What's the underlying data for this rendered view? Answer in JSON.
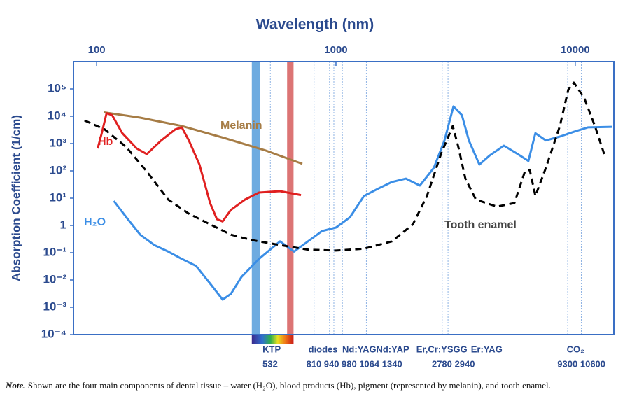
{
  "chart_data": {
    "type": "line",
    "title": "Wavelength (nm)",
    "y_label": "Absorption Coefficient (1/cm)",
    "x_scale": "log",
    "y_scale": "log",
    "xlim": [
      80,
      14500
    ],
    "xticks": [
      100,
      1000,
      10000
    ],
    "ylim": [
      0.0001,
      1000000
    ],
    "yticks": [
      {
        "value": 0.0001,
        "label": "10⁻⁴"
      },
      {
        "value": 0.001,
        "label": "10⁻³"
      },
      {
        "value": 0.01,
        "label": "10⁻²"
      },
      {
        "value": 0.1,
        "label": "10⁻¹"
      },
      1,
      {
        "value": 10,
        "label": "10¹"
      },
      {
        "value": 100,
        "label": "10²"
      },
      {
        "value": 1000,
        "label": "10³"
      },
      {
        "value": 10000,
        "label": "10⁴"
      },
      {
        "value": 100000,
        "label": "10⁵"
      }
    ],
    "series": [
      {
        "name": "Melanin",
        "color": "#a67c45",
        "x": [
          107,
          152,
          227,
          341,
          510,
          724
        ],
        "values": [
          14000,
          8900,
          4400,
          1600,
          550,
          180
        ]
      },
      {
        "name": "Hb",
        "color": "#e02020",
        "x": [
          101,
          105,
          110,
          116,
          128,
          147,
          162,
          186,
          213,
          227,
          243,
          269,
          298,
          318,
          336,
          364,
          417,
          477,
          584,
          714
        ],
        "values": [
          660,
          2400,
          13000,
          11000,
          2400,
          660,
          410,
          1300,
          3300,
          3900,
          1300,
          170,
          6.6,
          1.7,
          1.4,
          3.7,
          8.9,
          16,
          18,
          13
        ]
      },
      {
        "name": "H₂O",
        "color": "#3b8ee6",
        "x": [
          118,
          133,
          152,
          174,
          199,
          227,
          260,
          298,
          336,
          364,
          403,
          477,
          584,
          668,
          764,
          874,
          1000,
          1144,
          1309,
          1498,
          1713,
          1961,
          2243,
          2567,
          2840,
          3099,
          3360,
          3593,
          3977,
          4398,
          5033,
          5757,
          6369,
          6814,
          7538,
          8626,
          9870,
          11290,
          14290
        ],
        "values": [
          7.9,
          2.0,
          0.46,
          0.19,
          0.11,
          0.059,
          0.033,
          0.0074,
          0.0019,
          0.0031,
          0.013,
          0.059,
          0.26,
          0.11,
          0.26,
          0.62,
          0.84,
          2.0,
          12,
          22,
          39,
          52,
          29,
          130,
          1300,
          23000,
          11000,
          1300,
          170,
          370,
          840,
          410,
          230,
          2400,
          1300,
          1800,
          2700,
          3900,
          4100
        ]
      },
      {
        "name": "Tooth enamel",
        "color": "#000000",
        "dashed": true,
        "x": [
          89,
          108,
          133,
          162,
          199,
          243,
          298,
          364,
          446,
          584,
          764,
          1000,
          1309,
          1713,
          2097,
          2400,
          2746,
          3078,
          3249,
          3475,
          3844,
          4705,
          5567,
          6158,
          6455,
          6814,
          7538,
          8626,
          9350,
          9870,
          10910,
          12080,
          13360
        ],
        "values": [
          7000,
          3300,
          740,
          94,
          8.9,
          2.7,
          1.1,
          0.46,
          0.29,
          0.19,
          0.13,
          0.12,
          0.14,
          0.26,
          1.1,
          12,
          410,
          4400,
          740,
          52,
          8.9,
          4.9,
          6.6,
          94,
          110,
          12,
          130,
          4400,
          94000,
          170000,
          46000,
          4400,
          310
        ]
      }
    ],
    "bands": [
      {
        "color": "#3d8fd6",
        "range": [
          445,
          480
        ]
      },
      {
        "color": "#d04545",
        "range": [
          625,
          665
        ]
      }
    ],
    "lasers": [
      {
        "name": "KTP",
        "wavelengths": [
          532
        ]
      },
      {
        "name": "diodes",
        "wavelengths": [
          810,
          940,
          980
        ]
      },
      {
        "name": "Nd:YAG",
        "wavelengths": [
          1064
        ]
      },
      {
        "name": "Nd:YAP",
        "wavelengths": [
          1340
        ]
      },
      {
        "name": "Er,Cr:YSGG",
        "wavelengths": [
          2780
        ]
      },
      {
        "name": "Er:YAG",
        "wavelengths": [
          2940
        ]
      },
      {
        "name": "CO₂",
        "wavelengths": [
          9300,
          10600
        ]
      }
    ]
  },
  "note": {
    "label": "Note.",
    "text": "Shown are the four main components of dental tissue – water (H₂O), blood products (Hb), pigment (represented by melanin), and tooth enamel."
  }
}
